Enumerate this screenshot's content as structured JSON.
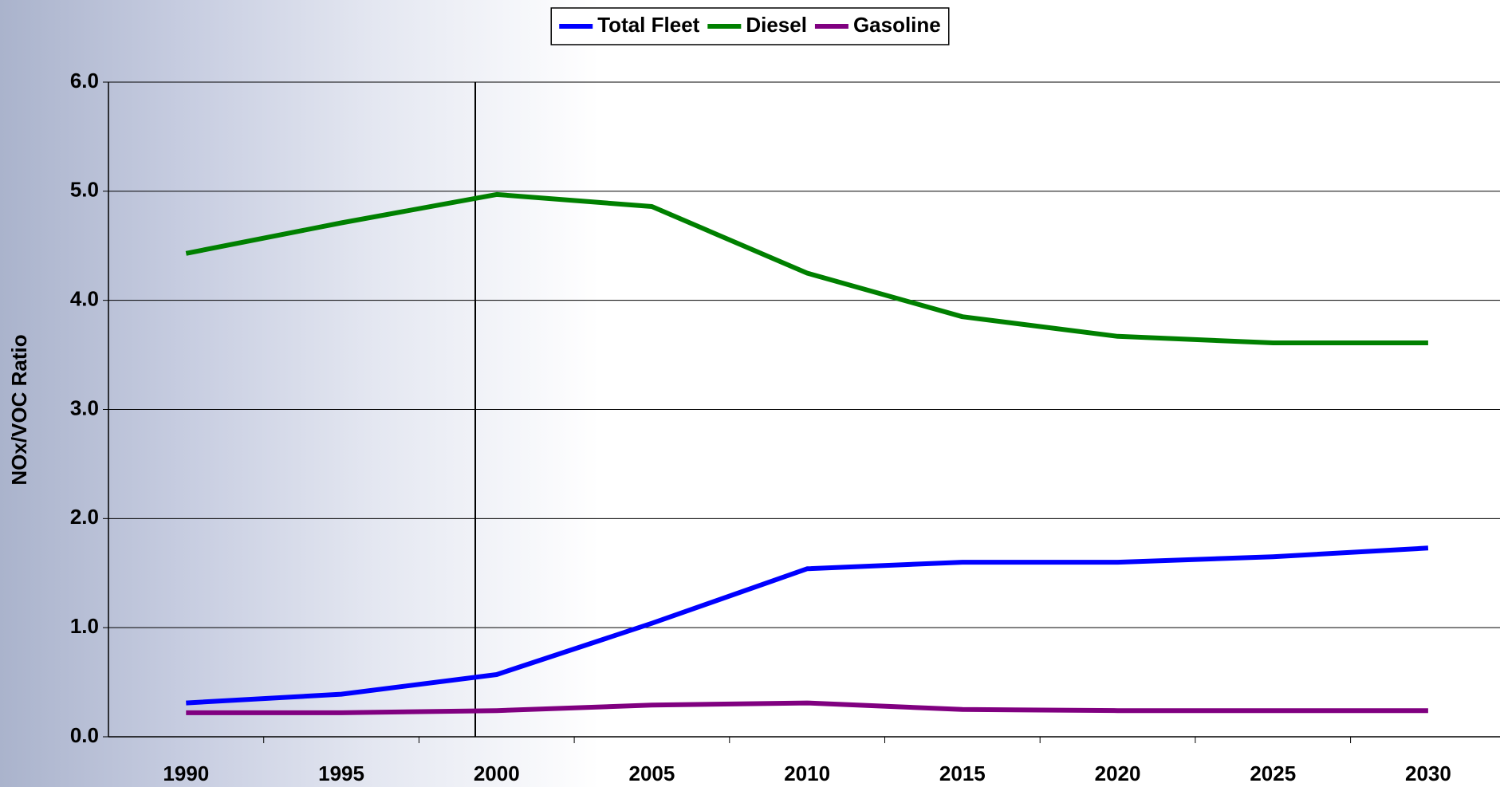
{
  "chart_data": {
    "type": "line",
    "y_label": "NOx/VOC Ratio",
    "categories": [
      "1990",
      "1995",
      "2000",
      "2005",
      "2010",
      "2015",
      "2020",
      "2025",
      "2030"
    ],
    "series": [
      {
        "name": "Total Fleet",
        "color": "#0000ff",
        "values": [
          0.31,
          0.39,
          0.57,
          1.04,
          1.54,
          1.6,
          1.6,
          1.65,
          1.73
        ]
      },
      {
        "name": "Diesel",
        "color": "#008000",
        "values": [
          4.43,
          4.71,
          4.97,
          4.86,
          4.25,
          3.85,
          3.67,
          3.61,
          3.61
        ]
      },
      {
        "name": "Gasoline",
        "color": "#800080",
        "values": [
          0.22,
          0.22,
          0.24,
          0.29,
          0.31,
          0.25,
          0.24,
          0.24,
          0.24
        ]
      }
    ],
    "ylim": [
      0,
      6
    ],
    "yticks": [
      {
        "value": 0,
        "label": "0.0"
      },
      {
        "value": 1,
        "label": "1.0"
      },
      {
        "value": 2,
        "label": "2.0"
      },
      {
        "value": 3,
        "label": "3.0"
      },
      {
        "value": 4,
        "label": "4.0"
      },
      {
        "value": 5,
        "label": "5.0"
      },
      {
        "value": 6,
        "label": "6.0"
      }
    ],
    "grid": true,
    "legend": "top"
  }
}
